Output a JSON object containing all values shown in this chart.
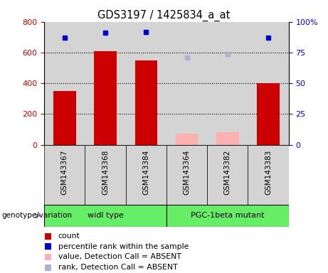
{
  "title": "GDS3197 / 1425834_a_at",
  "samples": [
    "GSM143367",
    "GSM143368",
    "GSM143384",
    "GSM143364",
    "GSM143382",
    "GSM143383"
  ],
  "count_present": [
    350,
    610,
    550,
    0,
    0,
    400
  ],
  "count_absent": [
    0,
    0,
    0,
    70,
    80,
    0
  ],
  "rank_present": [
    87,
    91,
    92,
    0,
    0,
    87
  ],
  "rank_absent": [
    0,
    0,
    0,
    71,
    74,
    0
  ],
  "groups": [
    {
      "label": "widl type",
      "start": 0,
      "end": 3,
      "color": "#66ee66"
    },
    {
      "label": "PGC-1beta mutant",
      "start": 3,
      "end": 6,
      "color": "#66ee66"
    }
  ],
  "left_ylim": [
    0,
    800
  ],
  "right_ylim": [
    0,
    100
  ],
  "left_yticks": [
    0,
    200,
    400,
    600,
    800
  ],
  "right_yticks": [
    0,
    25,
    50,
    75,
    100
  ],
  "right_yticklabels": [
    "0",
    "25",
    "50",
    "75",
    "100%"
  ],
  "bar_color_present": "#cc0000",
  "bar_color_absent": "#ffb0b0",
  "square_color_present": "#0000cc",
  "square_color_absent": "#b0b0cc",
  "bg_label": "#d4d4d4",
  "group_bg": "#66ee66",
  "genotype_label": "genotype/variation",
  "legend": [
    {
      "color": "#cc0000",
      "label": "count"
    },
    {
      "color": "#0000cc",
      "label": "percentile rank within the sample"
    },
    {
      "color": "#ffb0b0",
      "label": "value, Detection Call = ABSENT"
    },
    {
      "color": "#b0b0cc",
      "label": "rank, Detection Call = ABSENT"
    }
  ]
}
